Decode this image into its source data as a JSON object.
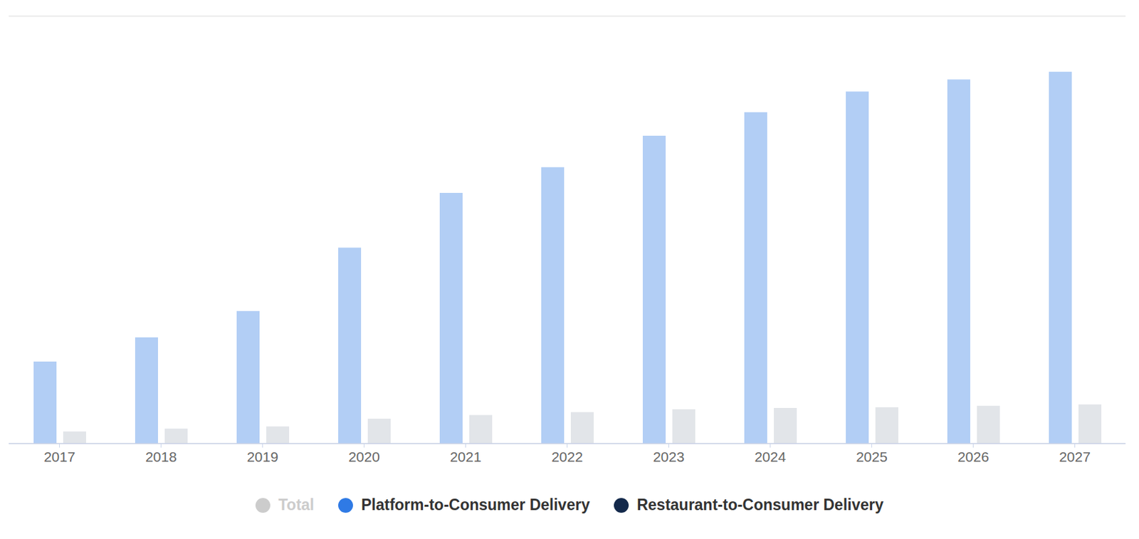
{
  "chart_data": {
    "type": "bar",
    "categories": [
      "2017",
      "2018",
      "2019",
      "2020",
      "2021",
      "2022",
      "2023",
      "2024",
      "2025",
      "2026",
      "2027"
    ],
    "series": [
      {
        "name": "Total",
        "color": "#cccccc",
        "values": [
          null,
          null,
          null,
          null,
          null,
          null,
          null,
          null,
          null,
          null,
          null
        ]
      },
      {
        "name": "Platform-to-Consumer Delivery",
        "color": "#2f7ae5",
        "values": [
          1.15,
          1.49,
          1.86,
          2.75,
          3.52,
          3.88,
          4.32,
          4.65,
          4.94,
          5.11,
          5.22
        ]
      },
      {
        "name": "Restaurant-to-Consumer Delivery",
        "color": "#13294b",
        "values": [
          0.17,
          0.21,
          0.24,
          0.35,
          0.4,
          0.44,
          0.48,
          0.5,
          0.51,
          0.53,
          0.55
        ]
      }
    ],
    "ylim": [
      0,
      6
    ],
    "yticks": [
      0,
      1,
      2,
      3,
      4,
      5,
      6
    ],
    "grid": true,
    "tick_labels": "x",
    "legend": "bottom"
  }
}
